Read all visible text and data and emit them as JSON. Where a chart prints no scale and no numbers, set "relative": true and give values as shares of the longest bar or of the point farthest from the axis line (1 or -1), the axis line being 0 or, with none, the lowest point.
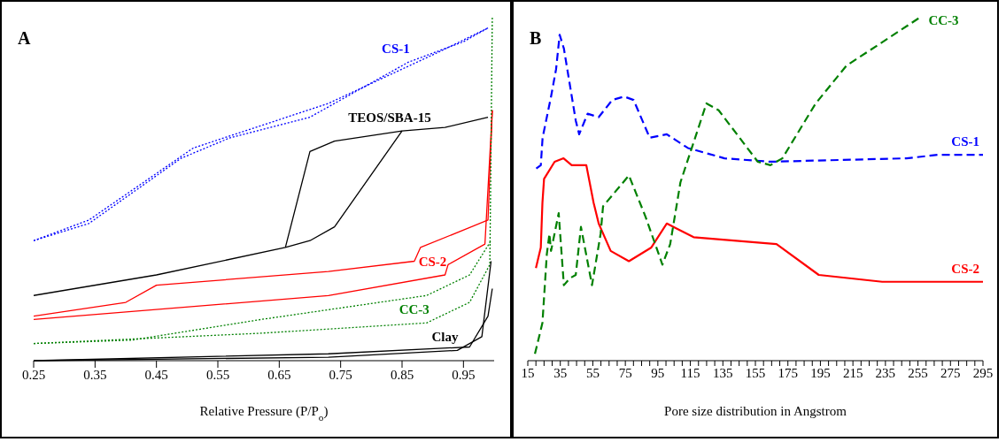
{
  "chart_data": [
    {
      "type": "line",
      "relative": true,
      "annotations": [
        "A"
      ],
      "xlabel": "Relative Pressure (P/P$_{o}$)",
      "xlim": [
        0.25,
        1.0
      ],
      "xticks": [
        0.25,
        0.35,
        0.45,
        0.55,
        0.65,
        0.75,
        0.85,
        0.95
      ],
      "marker": "none",
      "series": [
        {
          "name": "CS-1",
          "color": "#0000ff",
          "line_style": "dotted",
          "x": [
            0.25,
            0.34,
            0.49,
            0.57,
            0.7,
            0.86,
            0.95,
            0.99
          ],
          "values": [
            0.35,
            0.4,
            0.59,
            0.65,
            0.71,
            0.87,
            0.93,
            0.97
          ]
        },
        {
          "color": "#0000ff",
          "line_style": "dotted",
          "x": [
            0.25,
            0.34,
            0.51,
            0.73,
            0.91,
            0.99
          ],
          "values": [
            0.35,
            0.41,
            0.62,
            0.75,
            0.9,
            0.97
          ]
        },
        {
          "name": "TEOS/SBA-15",
          "color": "#000000",
          "line_style": "solid",
          "x": [
            0.25,
            0.45,
            0.66,
            0.7,
            0.74,
            0.85,
            0.92,
            0.99
          ],
          "values": [
            0.19,
            0.25,
            0.33,
            0.35,
            0.39,
            0.67,
            0.68,
            0.71
          ]
        },
        {
          "color": "#000000",
          "line_style": "solid",
          "x": [
            0.66,
            0.7,
            0.74,
            0.85
          ],
          "values": [
            0.33,
            0.61,
            0.64,
            0.67
          ]
        },
        {
          "name": "CS-2",
          "color": "#ff0000",
          "line_style": "solid",
          "x": [
            0.25,
            0.73,
            0.92,
            0.925,
            0.985,
            0.997
          ],
          "values": [
            0.12,
            0.19,
            0.25,
            0.28,
            0.34,
            0.73
          ]
        },
        {
          "color": "#ff0000",
          "line_style": "solid",
          "x": [
            0.25,
            0.4,
            0.45,
            0.73,
            0.87,
            0.88,
            0.99,
            0.997
          ],
          "values": [
            0.13,
            0.17,
            0.22,
            0.26,
            0.29,
            0.33,
            0.41,
            0.73
          ]
        },
        {
          "name": "CC-3",
          "color": "#008000",
          "line_style": "dotted",
          "x": [
            0.25,
            0.62,
            0.89,
            0.96,
            0.993,
            0.997
          ],
          "values": [
            0.05,
            0.08,
            0.11,
            0.17,
            0.28,
            1.0
          ]
        },
        {
          "color": "#008000",
          "line_style": "dotted",
          "x": [
            0.25,
            0.41,
            0.62,
            0.89,
            0.96,
            0.995
          ],
          "values": [
            0.05,
            0.06,
            0.12,
            0.19,
            0.25,
            0.35
          ]
        },
        {
          "name": "Clay",
          "color": "#000000",
          "line_style": "solid",
          "x": [
            0.25,
            0.73,
            0.94,
            0.98,
            0.995
          ],
          "values": [
            0,
            0.01,
            0.03,
            0.07,
            0.29
          ]
        },
        {
          "color": "#000000",
          "line_style": "solid",
          "x": [
            0.25,
            0.73,
            0.96,
            0.99,
            0.997
          ],
          "values": [
            0,
            0.02,
            0.04,
            0.13,
            0.21
          ]
        }
      ]
    },
    {
      "type": "line",
      "relative": true,
      "annotations": [
        "B"
      ],
      "xlabel": "Pore size distribution in Angstrom",
      "xlim": [
        15,
        295
      ],
      "xticks": [
        15,
        {
          "value": 20,
          "label": null
        },
        {
          "value": 25,
          "label": null
        },
        {
          "value": 30,
          "label": null
        },
        35,
        {
          "value": 40,
          "label": null
        },
        {
          "value": 45,
          "label": null
        },
        {
          "value": 50,
          "label": null
        },
        55,
        {
          "value": 60,
          "label": null
        },
        {
          "value": 65,
          "label": null
        },
        {
          "value": 70,
          "label": null
        },
        75,
        {
          "value": 80,
          "label": null
        },
        {
          "value": 85,
          "label": null
        },
        {
          "value": 90,
          "label": null
        },
        95,
        {
          "value": 100,
          "label": null
        },
        {
          "value": 105,
          "label": null
        },
        {
          "value": 110,
          "label": null
        },
        115,
        {
          "value": 120,
          "label": null
        },
        {
          "value": 125,
          "label": null
        },
        {
          "value": 130,
          "label": null
        },
        135,
        {
          "value": 140,
          "label": null
        },
        {
          "value": 145,
          "label": null
        },
        {
          "value": 150,
          "label": null
        },
        155,
        {
          "value": 160,
          "label": null
        },
        {
          "value": 165,
          "label": null
        },
        {
          "value": 170,
          "label": null
        },
        175,
        {
          "value": 180,
          "label": null
        },
        {
          "value": 185,
          "label": null
        },
        {
          "value": 190,
          "label": null
        },
        195,
        {
          "value": 200,
          "label": null
        },
        {
          "value": 205,
          "label": null
        },
        {
          "value": 210,
          "label": null
        },
        215,
        {
          "value": 220,
          "label": null
        },
        {
          "value": 225,
          "label": null
        },
        {
          "value": 230,
          "label": null
        },
        235,
        {
          "value": 240,
          "label": null
        },
        {
          "value": 245,
          "label": null
        },
        {
          "value": 250,
          "label": null
        },
        255,
        {
          "value": 260,
          "label": null
        },
        {
          "value": 265,
          "label": null
        },
        {
          "value": 270,
          "label": null
        },
        275,
        {
          "value": 280,
          "label": null
        },
        {
          "value": 285,
          "label": null
        },
        {
          "value": 290,
          "label": null
        },
        295
      ],
      "marker": "none",
      "series": [
        {
          "name": "CS-1",
          "color": "#0000ff",
          "line_style": "dashed",
          "x": [
            20.2,
            23,
            24.1,
            29.3,
            32.4,
            34.6,
            37.2,
            44.5,
            46.6,
            51.8,
            58.6,
            67,
            74.3,
            80.1,
            90,
            100.5,
            113.5,
            136,
            164,
            248,
            267,
            295
          ],
          "values": [
            0.56,
            0.57,
            0.65,
            0.77,
            0.85,
            0.95,
            0.91,
            0.7,
            0.66,
            0.72,
            0.71,
            0.76,
            0.77,
            0.76,
            0.65,
            0.66,
            0.62,
            0.59,
            0.58,
            0.59,
            0.6,
            0.6
          ]
        },
        {
          "name": "CS-2",
          "color": "#ff0000",
          "line_style": "solid",
          "x": [
            20,
            23,
            24,
            25,
            31.5,
            37,
            42,
            51,
            55.5,
            58.6,
            66,
            77.2,
            91,
            100.5,
            117,
            168,
            194,
            233,
            295
          ],
          "values": [
            0.27,
            0.33,
            0.46,
            0.53,
            0.58,
            0.59,
            0.57,
            0.57,
            0.46,
            0.4,
            0.32,
            0.29,
            0.33,
            0.4,
            0.36,
            0.34,
            0.25,
            0.23,
            0.23
          ]
        },
        {
          "name": "CC-3",
          "color": "#008000",
          "line_style": "dashed",
          "x": [
            19.4,
            24,
            26.7,
            28.3,
            29.3,
            34,
            37.2,
            40.8,
            44.5,
            47.7,
            54.5,
            59.8,
            61.3,
            77.2,
            87.4,
            97.8,
            102.6,
            108.9,
            124.9,
            132.4,
            156.5,
            164.3,
            171.6,
            192.1,
            211,
            256
          ],
          "values": [
            0.02,
            0.11,
            0.31,
            0.37,
            0.32,
            0.43,
            0.22,
            0.24,
            0.25,
            0.39,
            0.22,
            0.37,
            0.45,
            0.54,
            0.42,
            0.28,
            0.34,
            0.52,
            0.75,
            0.73,
            0.58,
            0.57,
            0.59,
            0.75,
            0.86,
            1.0
          ]
        }
      ]
    }
  ]
}
